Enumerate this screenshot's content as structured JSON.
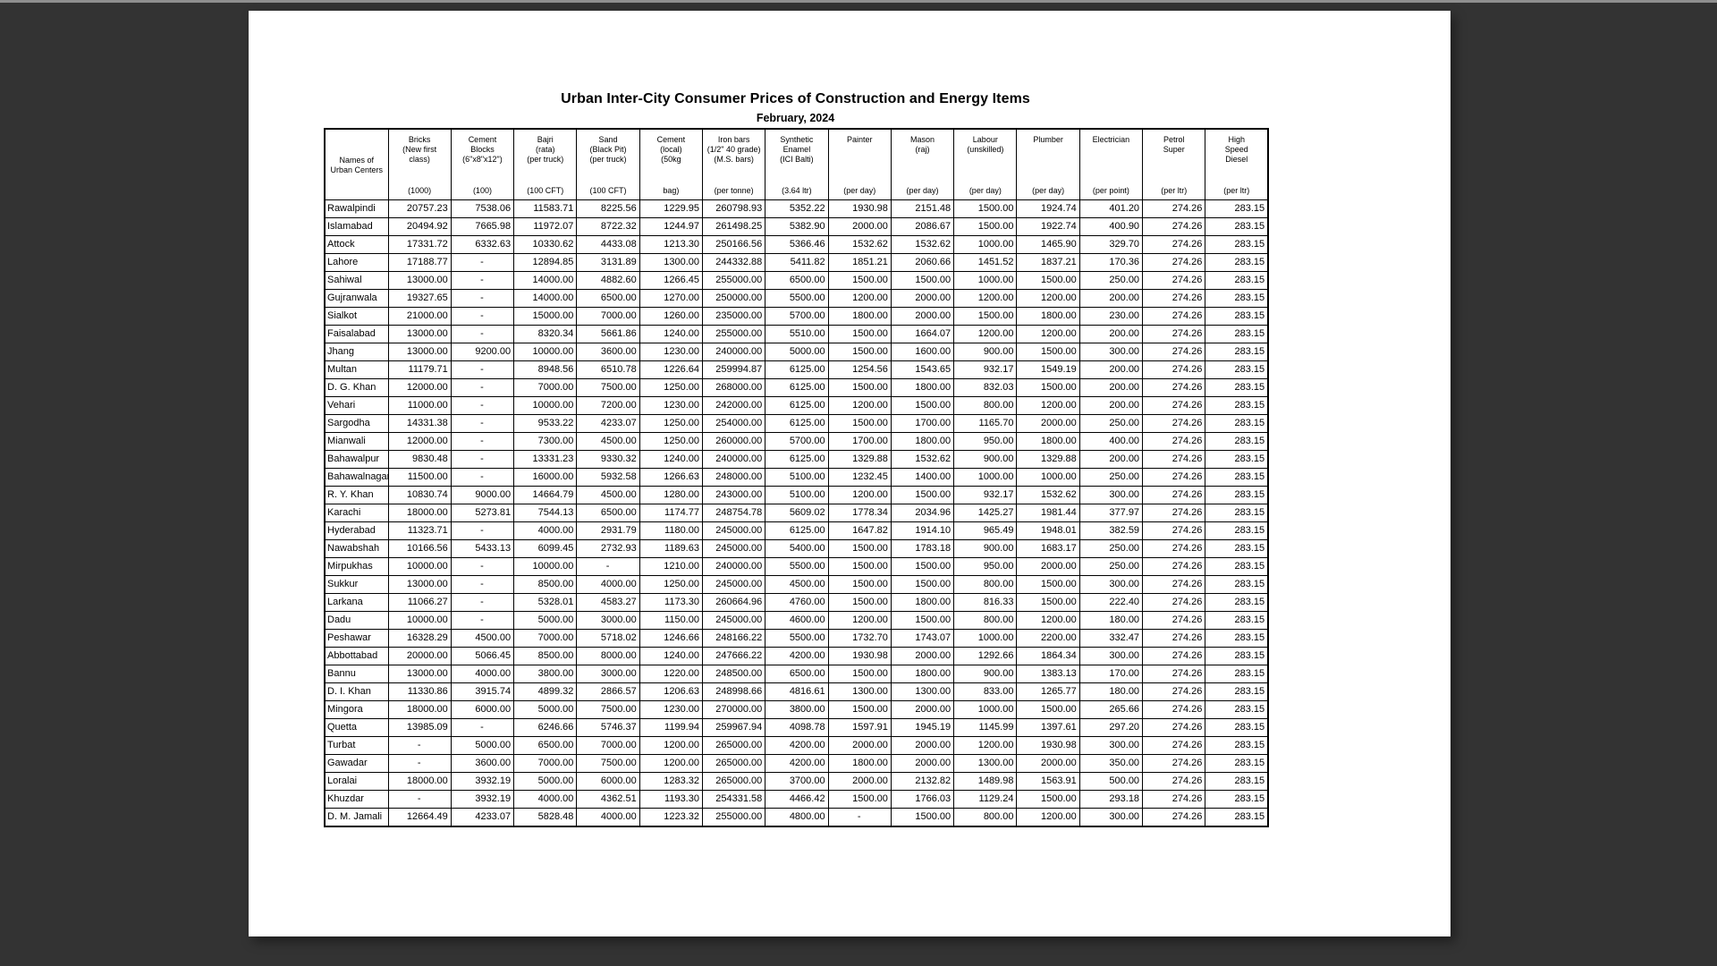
{
  "page": {
    "title": "Urban Inter-City Consumer Prices of Construction and Energy Items",
    "subtitle": "February, 2024"
  },
  "colors": {
    "canvas_background": "#333333",
    "page_background": "#ffffff",
    "table_border": "#000000",
    "text": "#000000",
    "top_strip": "#8f8f8f"
  },
  "table": {
    "corner_lines": [
      "Names of",
      "Urban Centers"
    ],
    "columns": [
      {
        "id": "bricks",
        "top": [
          "Bricks",
          "(New first",
          "class)"
        ],
        "bottom": [
          "(1000)"
        ]
      },
      {
        "id": "cement-blocks",
        "top": [
          "Cement",
          "Blocks",
          "(6\"x8\"x12\")"
        ],
        "bottom": [
          "(100)"
        ]
      },
      {
        "id": "bajri",
        "top": [
          "Bajri",
          "(rata)",
          "(per truck)"
        ],
        "bottom": [
          "(100 CFT)"
        ]
      },
      {
        "id": "sand",
        "top": [
          "Sand",
          "(Black Pit)",
          "(per truck)"
        ],
        "bottom": [
          "(100 CFT)"
        ]
      },
      {
        "id": "cement-local",
        "top": [
          "Cement",
          "(local)",
          "(50kg"
        ],
        "bottom": [
          "bag)"
        ]
      },
      {
        "id": "iron-bars",
        "top": [
          "Iron bars",
          "(1/2\" 40 grade)",
          "(M.S. bars)"
        ],
        "bottom": [
          "(per tonne)"
        ]
      },
      {
        "id": "synthetic-enamel",
        "top": [
          "Synthetic",
          "Enamel",
          "(ICI Balti)"
        ],
        "bottom": [
          "(3.64 ltr)"
        ]
      },
      {
        "id": "painter",
        "top": [
          "Painter"
        ],
        "bottom": [
          "(per day)"
        ]
      },
      {
        "id": "mason",
        "top": [
          "Mason",
          "(raj)"
        ],
        "bottom": [
          "(per day)"
        ]
      },
      {
        "id": "labour",
        "top": [
          "Labour",
          "(unskilled)"
        ],
        "bottom": [
          "(per day)"
        ]
      },
      {
        "id": "plumber",
        "top": [
          "Plumber"
        ],
        "bottom": [
          "(per day)"
        ]
      },
      {
        "id": "electrician",
        "top": [
          "Electrician"
        ],
        "bottom": [
          "(per point)"
        ]
      },
      {
        "id": "petrol-super",
        "top": [
          "Petrol",
          "Super"
        ],
        "bottom": [
          "(per ltr)"
        ]
      },
      {
        "id": "high-speed-diesel",
        "top": [
          "High",
          "Speed",
          "Diesel"
        ],
        "bottom": [
          "(per ltr)"
        ]
      }
    ],
    "rows": [
      {
        "name": "Rawalpindi",
        "values": [
          "20757.23",
          "7538.06",
          "11583.71",
          "8225.56",
          "1229.95",
          "260798.93",
          "5352.22",
          "1930.98",
          "2151.48",
          "1500.00",
          "1924.74",
          "401.20",
          "274.26",
          "283.15"
        ]
      },
      {
        "name": "Islamabad",
        "values": [
          "20494.92",
          "7665.98",
          "11972.07",
          "8722.32",
          "1244.97",
          "261498.25",
          "5382.90",
          "2000.00",
          "2086.67",
          "1500.00",
          "1922.74",
          "400.90",
          "274.26",
          "283.15"
        ]
      },
      {
        "name": "Attock",
        "values": [
          "17331.72",
          "6332.63",
          "10330.62",
          "4433.08",
          "1213.30",
          "250166.56",
          "5366.46",
          "1532.62",
          "1532.62",
          "1000.00",
          "1465.90",
          "329.70",
          "274.26",
          "283.15"
        ]
      },
      {
        "name": "Lahore",
        "values": [
          "17188.77",
          "-",
          "12894.85",
          "3131.89",
          "1300.00",
          "244332.88",
          "5411.82",
          "1851.21",
          "2060.66",
          "1451.52",
          "1837.21",
          "170.36",
          "274.26",
          "283.15"
        ]
      },
      {
        "name": "Sahiwal",
        "values": [
          "13000.00",
          "-",
          "14000.00",
          "4882.60",
          "1266.45",
          "255000.00",
          "6500.00",
          "1500.00",
          "1500.00",
          "1000.00",
          "1500.00",
          "250.00",
          "274.26",
          "283.15"
        ]
      },
      {
        "name": "Gujranwala",
        "values": [
          "19327.65",
          "-",
          "14000.00",
          "6500.00",
          "1270.00",
          "250000.00",
          "5500.00",
          "1200.00",
          "2000.00",
          "1200.00",
          "1200.00",
          "200.00",
          "274.26",
          "283.15"
        ]
      },
      {
        "name": "Sialkot",
        "values": [
          "21000.00",
          "-",
          "15000.00",
          "7000.00",
          "1260.00",
          "235000.00",
          "5700.00",
          "1800.00",
          "2000.00",
          "1500.00",
          "1800.00",
          "230.00",
          "274.26",
          "283.15"
        ]
      },
      {
        "name": "Faisalabad",
        "values": [
          "13000.00",
          "-",
          "8320.34",
          "5661.86",
          "1240.00",
          "255000.00",
          "5510.00",
          "1500.00",
          "1664.07",
          "1200.00",
          "1200.00",
          "200.00",
          "274.26",
          "283.15"
        ]
      },
      {
        "name": "Jhang",
        "values": [
          "13000.00",
          "9200.00",
          "10000.00",
          "3600.00",
          "1230.00",
          "240000.00",
          "5000.00",
          "1500.00",
          "1600.00",
          "900.00",
          "1500.00",
          "300.00",
          "274.26",
          "283.15"
        ]
      },
      {
        "name": "Multan",
        "values": [
          "11179.71",
          "-",
          "8948.56",
          "6510.78",
          "1226.64",
          "259994.87",
          "6125.00",
          "1254.56",
          "1543.65",
          "932.17",
          "1549.19",
          "200.00",
          "274.26",
          "283.15"
        ]
      },
      {
        "name": "D. G. Khan",
        "values": [
          "12000.00",
          "-",
          "7000.00",
          "7500.00",
          "1250.00",
          "268000.00",
          "6125.00",
          "1500.00",
          "1800.00",
          "832.03",
          "1500.00",
          "200.00",
          "274.26",
          "283.15"
        ]
      },
      {
        "name": "Vehari",
        "values": [
          "11000.00",
          "-",
          "10000.00",
          "7200.00",
          "1230.00",
          "242000.00",
          "6125.00",
          "1200.00",
          "1500.00",
          "800.00",
          "1200.00",
          "200.00",
          "274.26",
          "283.15"
        ]
      },
      {
        "name": "Sargodha",
        "values": [
          "14331.38",
          "-",
          "9533.22",
          "4233.07",
          "1250.00",
          "254000.00",
          "6125.00",
          "1500.00",
          "1700.00",
          "1165.70",
          "2000.00",
          "250.00",
          "274.26",
          "283.15"
        ]
      },
      {
        "name": "Mianwali",
        "values": [
          "12000.00",
          "-",
          "7300.00",
          "4500.00",
          "1250.00",
          "260000.00",
          "5700.00",
          "1700.00",
          "1800.00",
          "950.00",
          "1800.00",
          "400.00",
          "274.26",
          "283.15"
        ]
      },
      {
        "name": "Bahawalpur",
        "values": [
          "9830.48",
          "-",
          "13331.23",
          "9330.32",
          "1240.00",
          "240000.00",
          "6125.00",
          "1329.88",
          "1532.62",
          "900.00",
          "1329.88",
          "200.00",
          "274.26",
          "283.15"
        ]
      },
      {
        "name": "Bahawalnagar",
        "values": [
          "11500.00",
          "-",
          "16000.00",
          "5932.58",
          "1266.63",
          "248000.00",
          "5100.00",
          "1232.45",
          "1400.00",
          "1000.00",
          "1000.00",
          "250.00",
          "274.26",
          "283.15"
        ]
      },
      {
        "name": "R. Y. Khan",
        "values": [
          "10830.74",
          "9000.00",
          "14664.79",
          "4500.00",
          "1280.00",
          "243000.00",
          "5100.00",
          "1200.00",
          "1500.00",
          "932.17",
          "1532.62",
          "300.00",
          "274.26",
          "283.15"
        ]
      },
      {
        "name": "Karachi",
        "values": [
          "18000.00",
          "5273.81",
          "7544.13",
          "6500.00",
          "1174.77",
          "248754.78",
          "5609.02",
          "1778.34",
          "2034.96",
          "1425.27",
          "1981.44",
          "377.97",
          "274.26",
          "283.15"
        ]
      },
      {
        "name": "Hyderabad",
        "values": [
          "11323.71",
          "-",
          "4000.00",
          "2931.79",
          "1180.00",
          "245000.00",
          "6125.00",
          "1647.82",
          "1914.10",
          "965.49",
          "1948.01",
          "382.59",
          "274.26",
          "283.15"
        ]
      },
      {
        "name": "Nawabshah",
        "values": [
          "10166.56",
          "5433.13",
          "6099.45",
          "2732.93",
          "1189.63",
          "245000.00",
          "5400.00",
          "1500.00",
          "1783.18",
          "900.00",
          "1683.17",
          "250.00",
          "274.26",
          "283.15"
        ]
      },
      {
        "name": "Mirpukhas",
        "values": [
          "10000.00",
          "-",
          "10000.00",
          "-",
          "1210.00",
          "240000.00",
          "5500.00",
          "1500.00",
          "1500.00",
          "950.00",
          "2000.00",
          "250.00",
          "274.26",
          "283.15"
        ]
      },
      {
        "name": "Sukkur",
        "values": [
          "13000.00",
          "-",
          "8500.00",
          "4000.00",
          "1250.00",
          "245000.00",
          "4500.00",
          "1500.00",
          "1500.00",
          "800.00",
          "1500.00",
          "300.00",
          "274.26",
          "283.15"
        ]
      },
      {
        "name": "Larkana",
        "values": [
          "11066.27",
          "-",
          "5328.01",
          "4583.27",
          "1173.30",
          "260664.96",
          "4760.00",
          "1500.00",
          "1800.00",
          "816.33",
          "1500.00",
          "222.40",
          "274.26",
          "283.15"
        ]
      },
      {
        "name": "Dadu",
        "values": [
          "10000.00",
          "-",
          "5000.00",
          "3000.00",
          "1150.00",
          "245000.00",
          "4600.00",
          "1200.00",
          "1500.00",
          "800.00",
          "1200.00",
          "180.00",
          "274.26",
          "283.15"
        ]
      },
      {
        "name": "Peshawar",
        "values": [
          "16328.29",
          "4500.00",
          "7000.00",
          "5718.02",
          "1246.66",
          "248166.22",
          "5500.00",
          "1732.70",
          "1743.07",
          "1000.00",
          "2200.00",
          "332.47",
          "274.26",
          "283.15"
        ]
      },
      {
        "name": "Abbottabad",
        "values": [
          "20000.00",
          "5066.45",
          "8500.00",
          "8000.00",
          "1240.00",
          "247666.22",
          "4200.00",
          "1930.98",
          "2000.00",
          "1292.66",
          "1864.34",
          "300.00",
          "274.26",
          "283.15"
        ]
      },
      {
        "name": "Bannu",
        "values": [
          "13000.00",
          "4000.00",
          "3800.00",
          "3000.00",
          "1220.00",
          "248500.00",
          "6500.00",
          "1500.00",
          "1800.00",
          "900.00",
          "1383.13",
          "170.00",
          "274.26",
          "283.15"
        ]
      },
      {
        "name": "D. I. Khan",
        "values": [
          "11330.86",
          "3915.74",
          "4899.32",
          "2866.57",
          "1206.63",
          "248998.66",
          "4816.61",
          "1300.00",
          "1300.00",
          "833.00",
          "1265.77",
          "180.00",
          "274.26",
          "283.15"
        ]
      },
      {
        "name": "Mingora",
        "values": [
          "18000.00",
          "6000.00",
          "5000.00",
          "7500.00",
          "1230.00",
          "270000.00",
          "3800.00",
          "1500.00",
          "2000.00",
          "1000.00",
          "1500.00",
          "265.66",
          "274.26",
          "283.15"
        ]
      },
      {
        "name": "Quetta",
        "values": [
          "13985.09",
          "-",
          "6246.66",
          "5746.37",
          "1199.94",
          "259967.94",
          "4098.78",
          "1597.91",
          "1945.19",
          "1145.99",
          "1397.61",
          "297.20",
          "274.26",
          "283.15"
        ]
      },
      {
        "name": "Turbat",
        "values": [
          "-",
          "5000.00",
          "6500.00",
          "7000.00",
          "1200.00",
          "265000.00",
          "4200.00",
          "2000.00",
          "2000.00",
          "1200.00",
          "1930.98",
          "300.00",
          "274.26",
          "283.15"
        ]
      },
      {
        "name": "Gawadar",
        "values": [
          "-",
          "3600.00",
          "7000.00",
          "7500.00",
          "1200.00",
          "265000.00",
          "4200.00",
          "1800.00",
          "2000.00",
          "1300.00",
          "2000.00",
          "350.00",
          "274.26",
          "283.15"
        ]
      },
      {
        "name": "Loralai",
        "values": [
          "18000.00",
          "3932.19",
          "5000.00",
          "6000.00",
          "1283.32",
          "265000.00",
          "3700.00",
          "2000.00",
          "2132.82",
          "1489.98",
          "1563.91",
          "500.00",
          "274.26",
          "283.15"
        ]
      },
      {
        "name": "Khuzdar",
        "values": [
          "-",
          "3932.19",
          "4000.00",
          "4362.51",
          "1193.30",
          "254331.58",
          "4466.42",
          "1500.00",
          "1766.03",
          "1129.24",
          "1500.00",
          "293.18",
          "274.26",
          "283.15"
        ]
      },
      {
        "name": "D. M. Jamali",
        "values": [
          "12664.49",
          "4233.07",
          "5828.48",
          "4000.00",
          "1223.32",
          "255000.00",
          "4800.00",
          "-",
          "1500.00",
          "800.00",
          "1200.00",
          "300.00",
          "274.26",
          "283.15"
        ]
      }
    ]
  }
}
